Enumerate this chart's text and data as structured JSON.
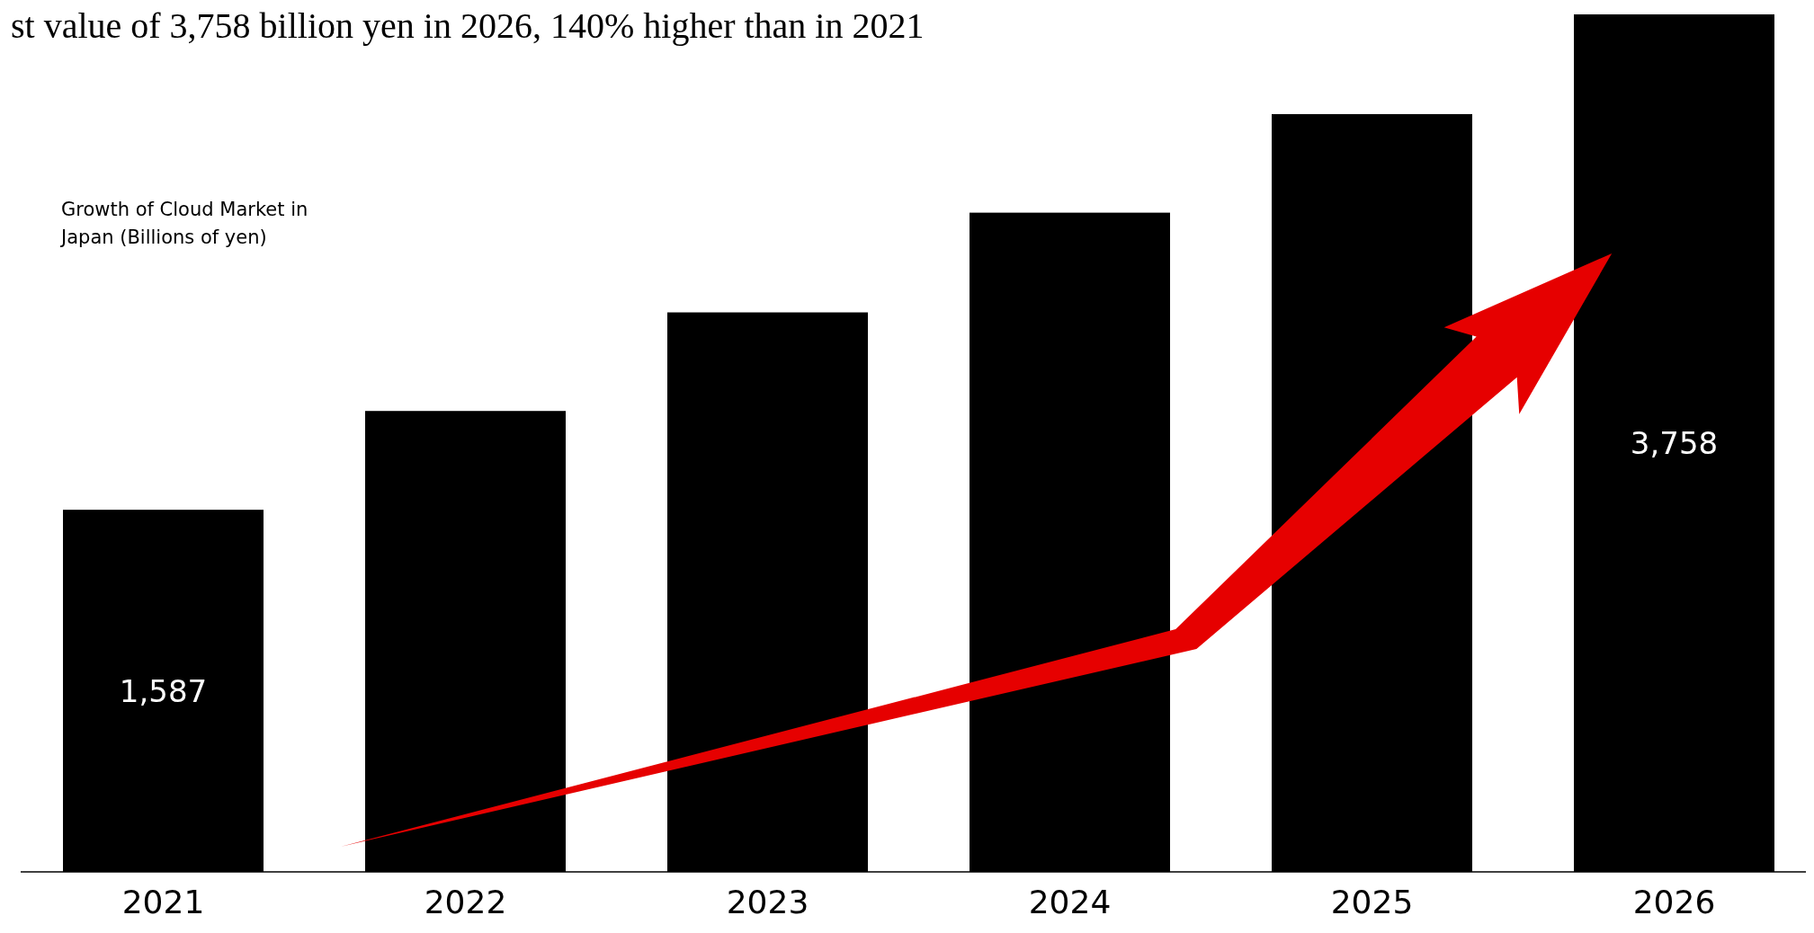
{
  "chart_data": {
    "type": "bar",
    "title": "st value of 3,758 billion yen in 2026, 140% higher than in 2021",
    "annotations": [
      "Growth of Cloud Market in Japan (Billions of yen)"
    ],
    "categories": [
      "2021",
      "2022",
      "2023",
      "2024",
      "2025",
      "2026"
    ],
    "values": [
      1587,
      2020,
      2452,
      2889,
      3321,
      3758
    ],
    "value_labels": [
      "1,587",
      null,
      null,
      null,
      null,
      "3,758"
    ],
    "color": "#000000"
  }
}
